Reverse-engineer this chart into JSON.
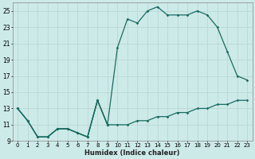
{
  "xlabel": "Humidex (Indice chaleur)",
  "bg_color": "#cceae8",
  "grid_color": "#b8d8d6",
  "line_color": "#1a6b60",
  "xlim": [
    -0.5,
    23.5
  ],
  "ylim": [
    9,
    26
  ],
  "xticks": [
    0,
    1,
    2,
    3,
    4,
    5,
    6,
    7,
    8,
    9,
    10,
    11,
    12,
    13,
    14,
    15,
    16,
    17,
    18,
    19,
    20,
    21,
    22,
    23
  ],
  "yticks": [
    9,
    11,
    13,
    15,
    17,
    19,
    21,
    23,
    25
  ],
  "series1_x": [
    0,
    1,
    2,
    3,
    4,
    5,
    6,
    7,
    8,
    9
  ],
  "series1_y": [
    13,
    11.5,
    9.5,
    9.5,
    10.5,
    10.5,
    10,
    9.5,
    14,
    11
  ],
  "series2_x": [
    0,
    1,
    2,
    3,
    4,
    5,
    6,
    7,
    8,
    9,
    10,
    11,
    12,
    13,
    14,
    15,
    16,
    17,
    18,
    19,
    20,
    21,
    22,
    23
  ],
  "series2_y": [
    13,
    11.5,
    9.5,
    9.5,
    10.5,
    10.5,
    10,
    9.5,
    14,
    11,
    20.5,
    24,
    23.5,
    25,
    25.5,
    24.5,
    24.5,
    24.5,
    25,
    24.5,
    23,
    20,
    17,
    16.5
  ],
  "series3_x": [
    0,
    1,
    2,
    3,
    4,
    5,
    6,
    7,
    8,
    9,
    10,
    11,
    12,
    13,
    14,
    15,
    16,
    17,
    18,
    19,
    20,
    21,
    22,
    23
  ],
  "series3_y": [
    13,
    11.5,
    9.5,
    9.5,
    10.5,
    10.5,
    10,
    9.5,
    14,
    11,
    11,
    11,
    11.5,
    11.5,
    12,
    12,
    12.5,
    12.5,
    13,
    13,
    13.5,
    13.5,
    14,
    14
  ]
}
